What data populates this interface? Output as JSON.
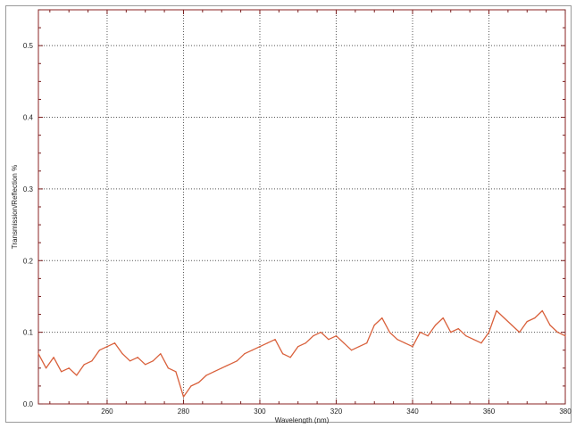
{
  "chart_data": {
    "type": "line",
    "title": "",
    "xlabel": "Wavelength (nm)",
    "ylabel": "Transmission/Reflection %",
    "xlim": [
      242,
      380
    ],
    "ylim": [
      0.0,
      0.55
    ],
    "x_ticks": [
      260,
      280,
      300,
      320,
      340,
      360,
      380
    ],
    "y_ticks": [
      0.0,
      0.1,
      0.2,
      0.3,
      0.4,
      0.5
    ],
    "x_tick_labels": [
      "260",
      "280",
      "300",
      "320",
      "340",
      "360",
      "380"
    ],
    "y_tick_labels": [
      "0.0",
      "0.1",
      "0.2",
      "0.3",
      "0.4",
      "0.5"
    ],
    "grid": true,
    "legend": "none",
    "colors": {
      "series": "#d9603b",
      "grid": "#555555",
      "axes": "#8b2323",
      "tick": "#7a1f1f"
    },
    "series": [
      {
        "name": "",
        "x": [
          242,
          244,
          246,
          248,
          250,
          252,
          254,
          256,
          258,
          260,
          262,
          264,
          266,
          268,
          270,
          272,
          274,
          276,
          278,
          280,
          282,
          284,
          286,
          288,
          290,
          292,
          294,
          296,
          298,
          300,
          302,
          304,
          306,
          308,
          310,
          312,
          314,
          316,
          318,
          320,
          322,
          324,
          326,
          328,
          330,
          332,
          334,
          336,
          338,
          340,
          342,
          344,
          346,
          348,
          350,
          352,
          354,
          356,
          358,
          360,
          362,
          364,
          366,
          368,
          370,
          372,
          374,
          376,
          378,
          380
        ],
        "y": [
          0.07,
          0.05,
          0.065,
          0.045,
          0.05,
          0.04,
          0.055,
          0.06,
          0.075,
          0.08,
          0.085,
          0.07,
          0.06,
          0.065,
          0.055,
          0.06,
          0.07,
          0.05,
          0.045,
          0.01,
          0.025,
          0.03,
          0.04,
          0.045,
          0.05,
          0.055,
          0.06,
          0.07,
          0.075,
          0.08,
          0.085,
          0.09,
          0.07,
          0.065,
          0.08,
          0.085,
          0.095,
          0.1,
          0.09,
          0.095,
          0.085,
          0.075,
          0.08,
          0.085,
          0.11,
          0.12,
          0.1,
          0.09,
          0.085,
          0.08,
          0.1,
          0.095,
          0.11,
          0.12,
          0.1,
          0.105,
          0.095,
          0.09,
          0.085,
          0.1,
          0.13,
          0.12,
          0.11,
          0.1,
          0.115,
          0.12,
          0.13,
          0.11,
          0.1,
          0.095
        ]
      }
    ]
  }
}
